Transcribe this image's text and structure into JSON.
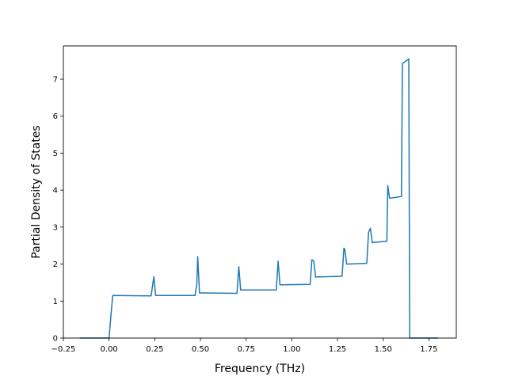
{
  "chart_data": {
    "type": "line",
    "title": "",
    "xlabel": "Frequency (THz)",
    "ylabel": "Partial Density of States",
    "xlim": [
      -0.25,
      1.9
    ],
    "ylim": [
      0,
      7.9
    ],
    "grid": false,
    "line_color": "#1f77b4",
    "x_ticks": [
      -0.25,
      0.0,
      0.25,
      0.5,
      0.75,
      1.0,
      1.25,
      1.5,
      1.75
    ],
    "x_tick_labels": [
      "−0.25",
      "0.00",
      "0.25",
      "0.50",
      "0.75",
      "1.00",
      "1.25",
      "1.50",
      "1.75"
    ],
    "y_ticks": [
      0,
      1,
      2,
      3,
      4,
      5,
      6,
      7
    ],
    "y_tick_labels": [
      "0",
      "1",
      "2",
      "3",
      "4",
      "5",
      "6",
      "7"
    ],
    "series": [
      {
        "x": [
          -0.16,
          0.0,
          0.01,
          0.02,
          0.23,
          0.245,
          0.255,
          0.47,
          0.48,
          0.485,
          0.495,
          0.7,
          0.71,
          0.72,
          0.915,
          0.925,
          0.935,
          1.1,
          1.11,
          1.12,
          1.13,
          1.275,
          1.285,
          1.29,
          1.3,
          1.41,
          1.42,
          1.43,
          1.44,
          1.52,
          1.525,
          1.535,
          1.6,
          1.605,
          1.64,
          1.645,
          1.8
        ],
        "y": [
          0.0,
          0.0,
          0.6,
          1.15,
          1.14,
          1.66,
          1.15,
          1.15,
          1.45,
          2.2,
          1.22,
          1.21,
          1.93,
          1.3,
          1.3,
          2.08,
          1.44,
          1.45,
          2.12,
          2.08,
          1.65,
          1.67,
          2.43,
          2.4,
          2.0,
          2.02,
          2.86,
          2.97,
          2.58,
          2.62,
          4.12,
          3.78,
          3.83,
          7.42,
          7.55,
          0.0,
          0.0
        ]
      }
    ]
  }
}
